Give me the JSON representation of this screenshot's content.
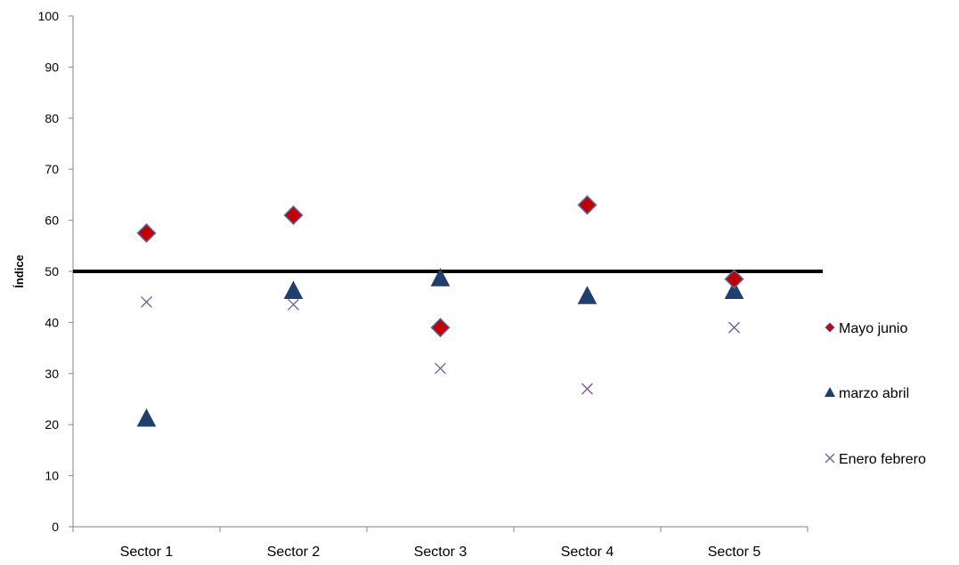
{
  "chart_data": {
    "type": "scatter",
    "title": "",
    "xlabel": "",
    "ylabel": "Índice",
    "categories": [
      "Sector 1",
      "Sector 2",
      "Sector 3",
      "Sector 4",
      "Sector 5"
    ],
    "ylim": [
      0,
      100
    ],
    "yticks": [
      "0",
      "10",
      "20",
      "30",
      "40",
      "50",
      "60",
      "70",
      "80",
      "90",
      "100"
    ],
    "grid": false,
    "legend_position": "right",
    "reference_line": {
      "y": 50,
      "color": "#000000"
    },
    "series": [
      {
        "name": "Mayo junio",
        "marker": "diamond",
        "color": "#c00000",
        "edge_color": "#4f6fa8",
        "values": [
          57.5,
          61,
          39,
          63,
          48.5
        ]
      },
      {
        "name": "marzo abril",
        "marker": "triangle",
        "color": "#1f3f6e",
        "values": [
          21,
          46,
          48.5,
          45,
          46
        ]
      },
      {
        "name": "Enero febrero",
        "marker": "x",
        "color": "#7a5a9a",
        "values": [
          44,
          43.5,
          31,
          27,
          39
        ]
      }
    ]
  }
}
